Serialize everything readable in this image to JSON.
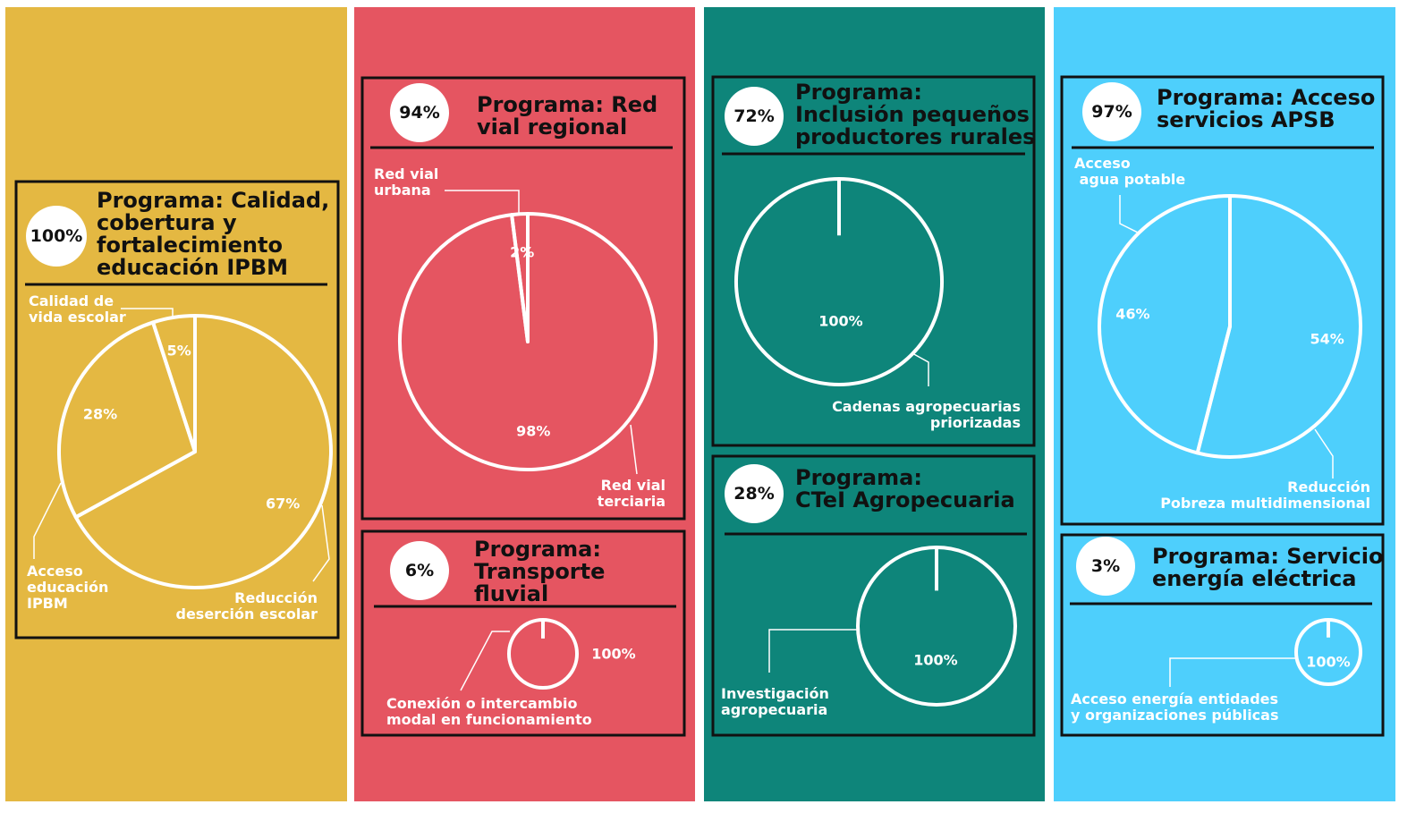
{
  "chart_data": [
    {
      "type": "pie",
      "title": "Programa: Calidad,\ncobertura y\nfortalecimiento\neducación IPBM",
      "badge": "100%",
      "categories": [
        "Reducción\ndeserción escolar",
        "Acceso\neducación\nIPBM",
        "Calidad de\nvida escolar"
      ],
      "values": [
        67,
        28,
        5
      ],
      "value_labels": [
        "67%",
        "28%",
        "5%"
      ],
      "color": "#e4b842"
    },
    {
      "type": "pie",
      "title": "Programa: Red\nvial regional",
      "badge": "94%",
      "categories": [
        "Red vial\nterciaria",
        "Red vial\nurbana"
      ],
      "values": [
        98,
        2
      ],
      "value_labels": [
        "98%",
        "2%"
      ],
      "color": "#e55561"
    },
    {
      "type": "pie",
      "title": "Programa:\nTransporte\nfluvial",
      "badge": "6%",
      "categories": [
        "Conexión o intercambio\nmodal en funcionamiento"
      ],
      "values": [
        100
      ],
      "value_labels": [
        "100%"
      ],
      "color": "#e55561"
    },
    {
      "type": "pie",
      "title": "Programa:\nInclusión pequeños\nproductores rurales",
      "badge": "72%",
      "categories": [
        "Cadenas agropecuarias\npriorizadas"
      ],
      "values": [
        100
      ],
      "value_labels": [
        "100%"
      ],
      "color": "#0e857a"
    },
    {
      "type": "pie",
      "title": "Programa:\nCTeI Agropecuaria",
      "badge": "28%",
      "categories": [
        "Investigación\nagropecuaria"
      ],
      "values": [
        100
      ],
      "value_labels": [
        "100%"
      ],
      "color": "#0e857a"
    },
    {
      "type": "pie",
      "title": "Programa: Acceso\nservicios APSB",
      "badge": "97%",
      "categories": [
        "Reducción\nPobreza multidimensional",
        "Acceso\n agua potable"
      ],
      "values": [
        54,
        46
      ],
      "value_labels": [
        "54%",
        "46%"
      ],
      "color": "#4ecffc"
    },
    {
      "type": "pie",
      "title": "Programa: Servicio\nenergía eléctrica",
      "badge": "3%",
      "categories": [
        "Acceso energía entidades\ny organizaciones públicas"
      ],
      "values": [
        100
      ],
      "value_labels": [
        "100%"
      ],
      "color": "#4ecffc"
    }
  ]
}
